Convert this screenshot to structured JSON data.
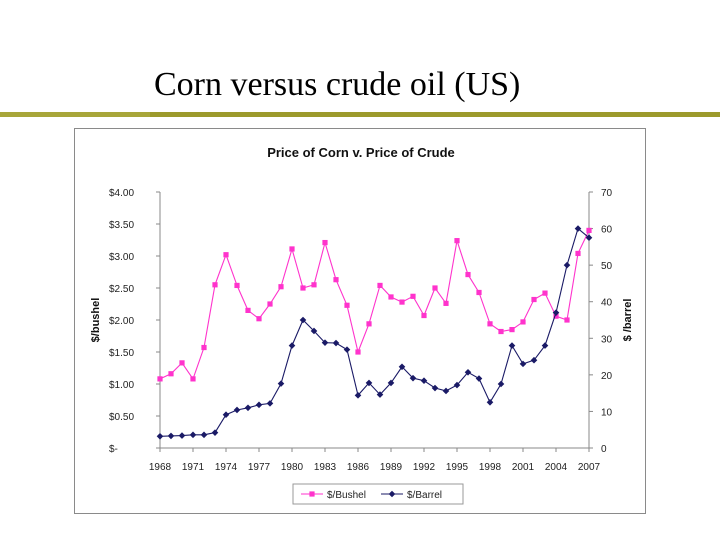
{
  "slide": {
    "title": "Corn versus crude oil (US)"
  },
  "colors": {
    "title_rule": "#9c9a2c",
    "corn": "#ff33cc",
    "crude": "#1a1a66"
  },
  "chart_data": {
    "type": "line",
    "title": "Price of Corn v. Price of Crude",
    "x": [
      1968,
      1969,
      1970,
      1971,
      1972,
      1973,
      1974,
      1975,
      1976,
      1977,
      1978,
      1979,
      1980,
      1981,
      1982,
      1983,
      1984,
      1985,
      1986,
      1987,
      1988,
      1989,
      1990,
      1991,
      1992,
      1993,
      1994,
      1995,
      1996,
      1997,
      1998,
      1999,
      2000,
      2001,
      2002,
      2003,
      2004,
      2005,
      2006,
      2007
    ],
    "x_tick_labels": [
      "1968",
      "1971",
      "1974",
      "1977",
      "1980",
      "1983",
      "1986",
      "1989",
      "1992",
      "1995",
      "1998",
      "2001",
      "2004",
      "2007"
    ],
    "ylabel_left": "$/bushel",
    "ylabel_right": "$ /barrel",
    "ylim_left": [
      0,
      4
    ],
    "ylim_right": [
      0,
      70
    ],
    "yticks_left": [
      "$-",
      "$0.50",
      "$1.00",
      "$1.50",
      "$2.00",
      "$2.50",
      "$3.00",
      "$3.50",
      "$4.00"
    ],
    "yticks_right": [
      "0",
      "10",
      "20",
      "30",
      "40",
      "50",
      "60",
      "70"
    ],
    "grid": false,
    "legend_position": "bottom",
    "series": [
      {
        "name": "$/Bushel",
        "axis": "left",
        "marker": "square",
        "values": [
          1.08,
          1.16,
          1.33,
          1.08,
          1.57,
          2.55,
          3.02,
          2.54,
          2.15,
          2.02,
          2.25,
          2.52,
          3.11,
          2.5,
          2.55,
          3.21,
          2.63,
          2.23,
          1.5,
          1.94,
          2.54,
          2.36,
          2.28,
          2.37,
          2.07,
          2.5,
          2.26,
          3.24,
          2.71,
          2.43,
          1.94,
          1.82,
          1.85,
          1.97,
          2.32,
          2.42,
          2.06,
          2.0,
          3.04,
          3.4
        ]
      },
      {
        "name": "$/Barrel",
        "axis": "right",
        "marker": "diamond",
        "values": [
          3.2,
          3.3,
          3.4,
          3.6,
          3.6,
          4.2,
          9.1,
          10.4,
          11.0,
          11.8,
          12.2,
          17.6,
          28.0,
          35.0,
          32.0,
          28.8,
          28.7,
          26.9,
          14.4,
          17.8,
          14.6,
          17.8,
          22.2,
          19.1,
          18.4,
          16.4,
          15.6,
          17.2,
          20.7,
          19.0,
          12.5,
          17.5,
          28.0,
          23.0,
          24.0,
          28.0,
          37.0,
          50.0,
          60.0,
          57.5
        ]
      }
    ]
  }
}
